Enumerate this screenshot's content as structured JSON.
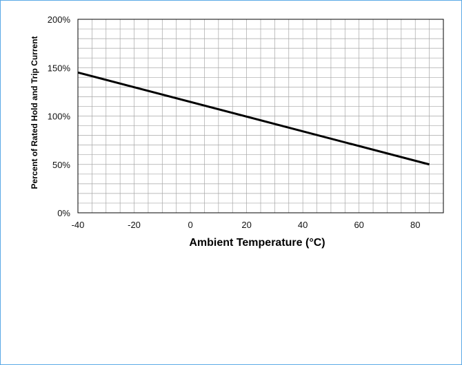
{
  "chart_data": {
    "type": "line",
    "xlabel": "Ambient Temperature (°C)",
    "ylabel": "Percent of Rated Hold  and Trip Current",
    "xlim": [
      -40,
      90
    ],
    "ylim": [
      0,
      200
    ],
    "x_ticks": [
      -40,
      -20,
      0,
      20,
      40,
      60,
      80
    ],
    "x_tick_labels": [
      "-40",
      "-20",
      "0",
      "20",
      "40",
      "60",
      "80"
    ],
    "y_ticks": [
      0,
      50,
      100,
      150,
      200
    ],
    "y_tick_labels": [
      "0%",
      "50%",
      "100%",
      "150%",
      "200%"
    ],
    "grid": true,
    "legend": "none",
    "colors": {
      "line": "#000000",
      "grid": "#a6a6a6",
      "frame": "#5aa9e6"
    },
    "series": [
      {
        "x": [
          -40,
          85
        ],
        "y": [
          145,
          50
        ]
      }
    ]
  }
}
